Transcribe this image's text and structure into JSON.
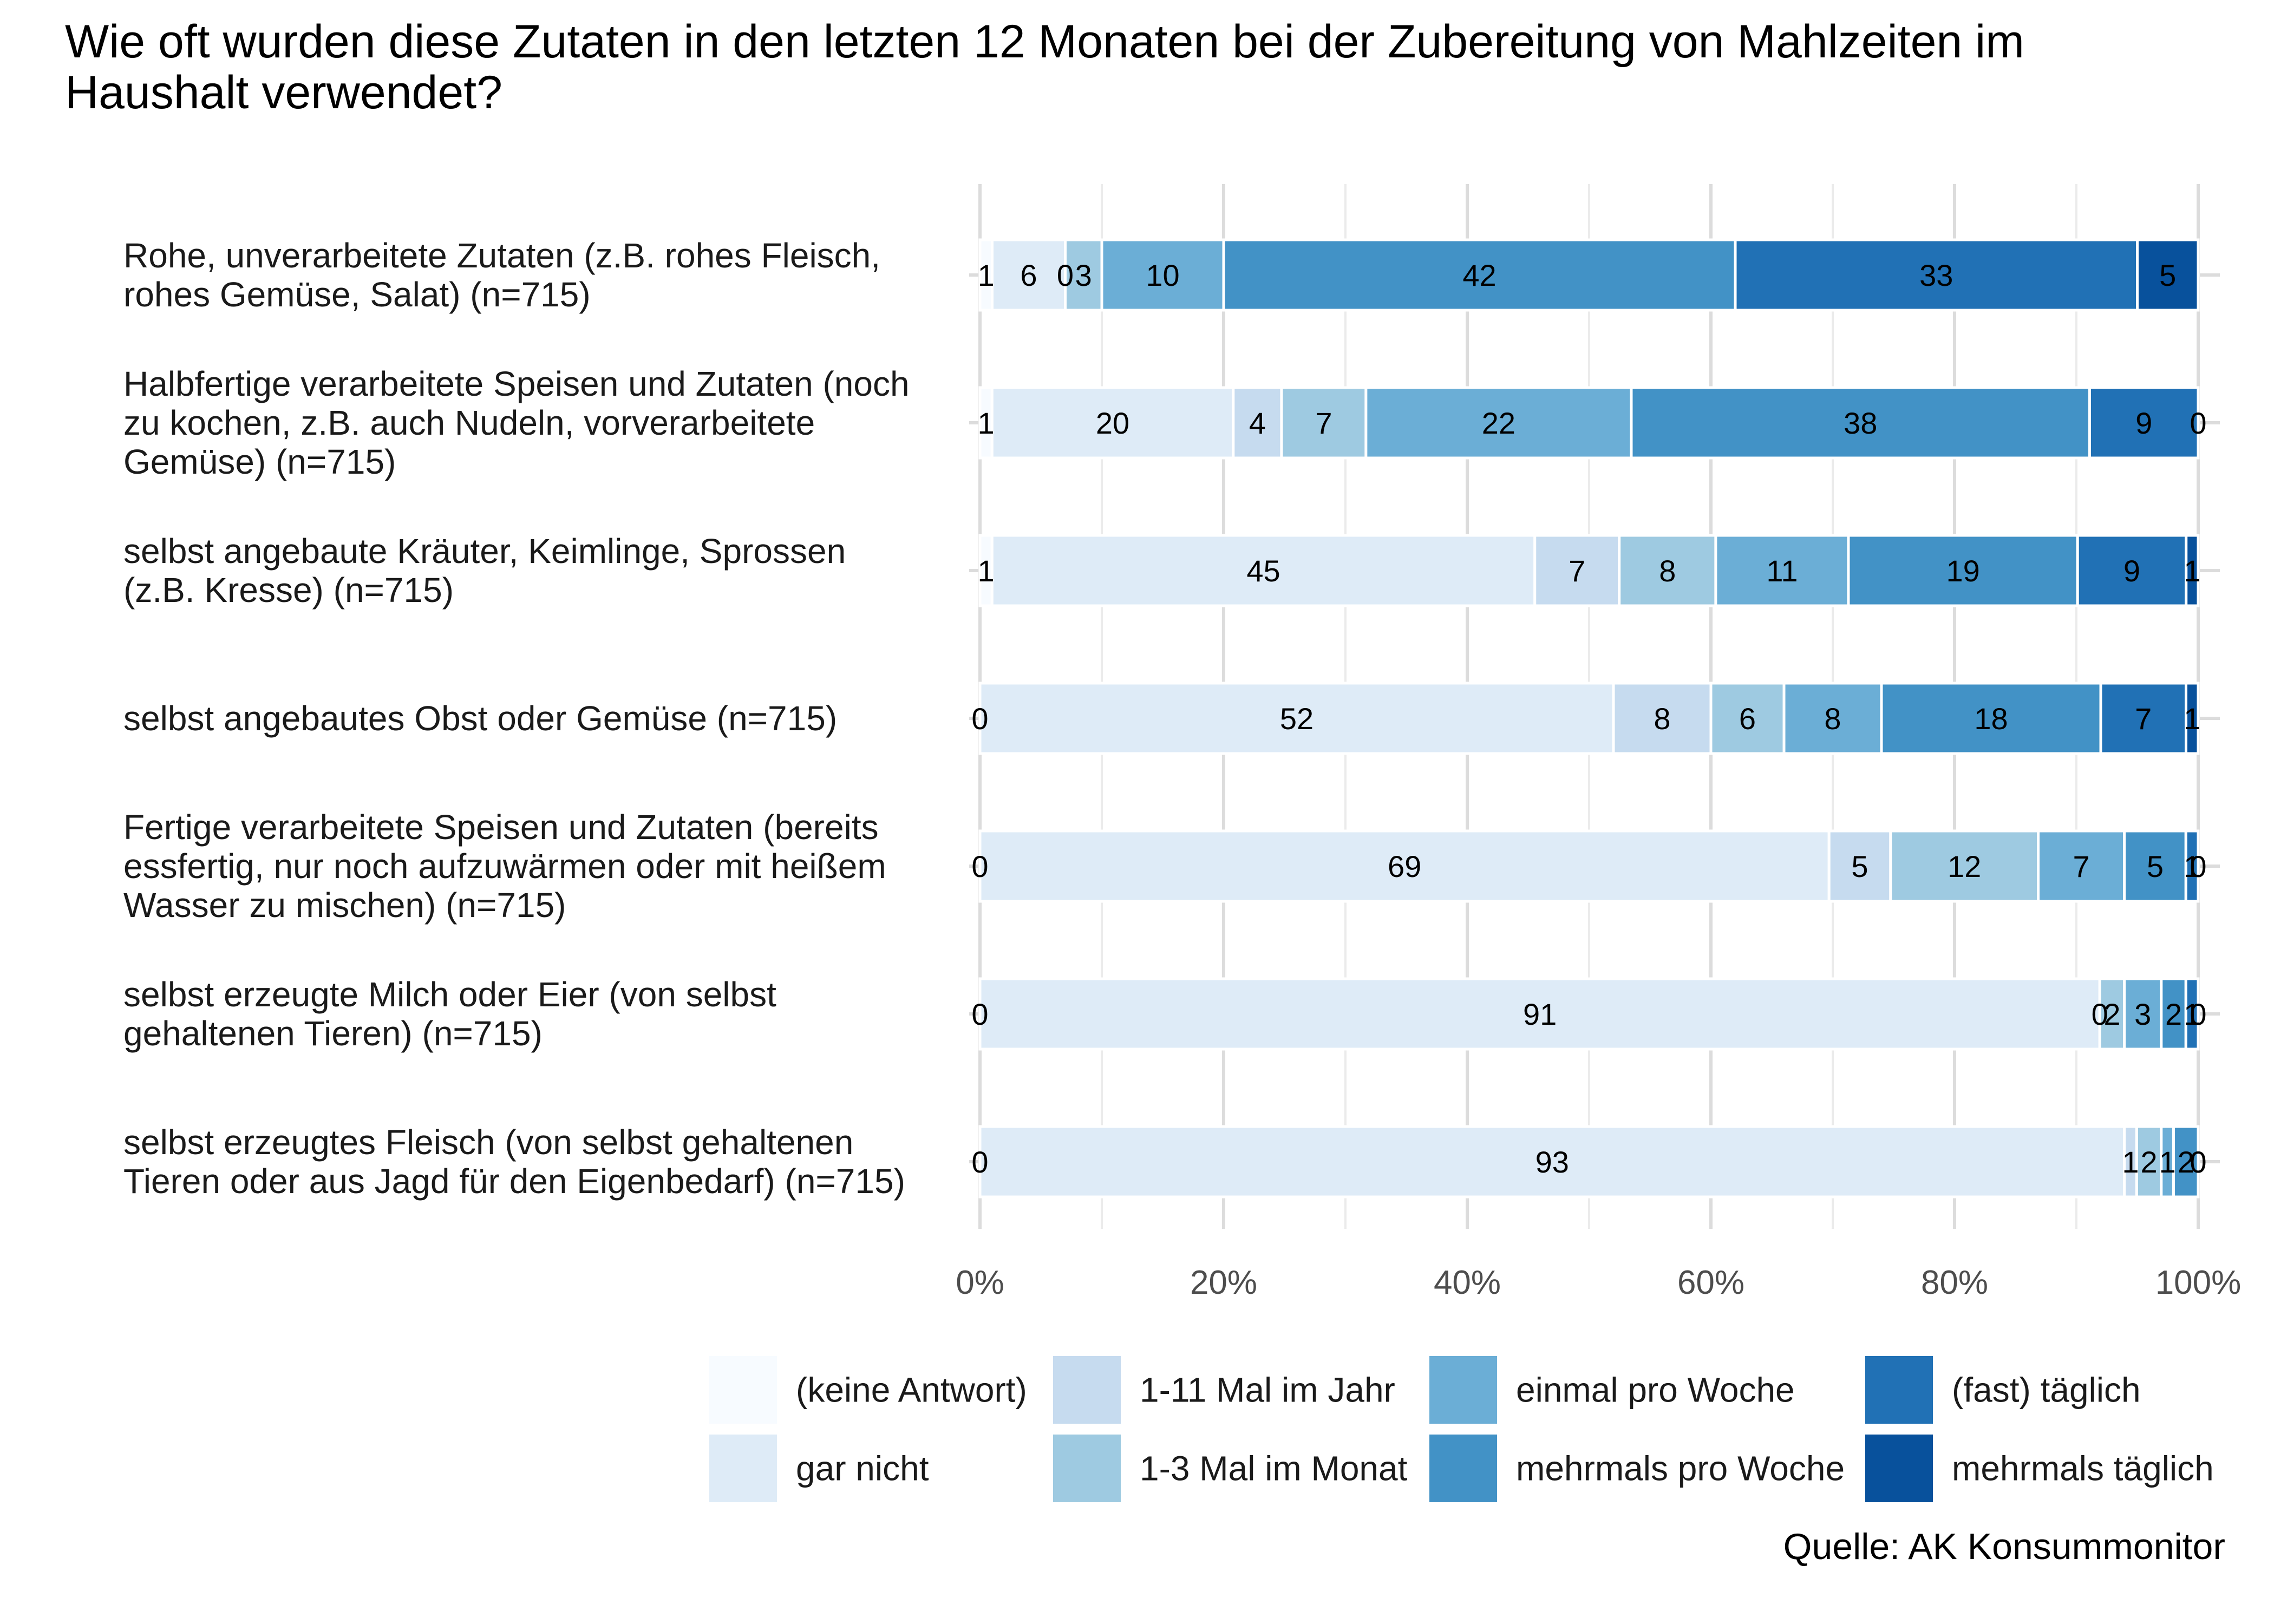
{
  "chart_data": {
    "type": "bar",
    "orientation": "horizontal",
    "stacked": "percent",
    "title_lines": [
      "Wie oft wurden diese Zutaten in den letzten 12 Monaten bei der Zubereitung von Mahlzeiten im",
      "Haushalt verwendet?"
    ],
    "categories": [
      [
        "Rohe, unverarbeitete Zutaten (z.B. rohes Fleisch,",
        "rohes Gemüse, Salat) (n=715)"
      ],
      [
        "Halbfertige verarbeitete Speisen und Zutaten (noch",
        "zu kochen, z.B. auch Nudeln, vorverarbeitete",
        "Gemüse) (n=715)"
      ],
      [
        "selbst angebaute Kräuter, Keimlinge, Sprossen",
        "(z.B. Kresse) (n=715)"
      ],
      [
        "selbst angebautes Obst oder Gemüse (n=715)"
      ],
      [
        "Fertige verarbeitete Speisen und Zutaten (bereits",
        "essfertig, nur noch aufzuwärmen oder mit heißem",
        "Wasser zu mischen) (n=715)"
      ],
      [
        "selbst erzeugte Milch oder Eier (von selbst",
        "gehaltenen Tieren) (n=715)"
      ],
      [
        "selbst erzeugtes Fleisch (von selbst gehaltenen",
        "Tieren oder aus Jagd für den Eigenbedarf) (n=715)"
      ]
    ],
    "series": [
      {
        "name": "(keine Antwort)",
        "color": "#f7fbff",
        "values": [
          1,
          1,
          1,
          0,
          0,
          0,
          0
        ]
      },
      {
        "name": "gar nicht",
        "color": "#deebf7",
        "values": [
          6,
          20,
          45,
          52,
          69,
          91,
          93
        ]
      },
      {
        "name": "1-11 Mal im Jahr",
        "color": "#c6dbef",
        "values": [
          0,
          4,
          7,
          8,
          5,
          0,
          1
        ]
      },
      {
        "name": "1-3 Mal im Monat",
        "color": "#9ecae1",
        "values": [
          3,
          7,
          8,
          6,
          12,
          2,
          2
        ]
      },
      {
        "name": "einmal pro Woche",
        "color": "#6baed6",
        "values": [
          10,
          22,
          11,
          8,
          7,
          3,
          1
        ]
      },
      {
        "name": "mehrmals pro Woche",
        "color": "#4292c6",
        "values": [
          42,
          38,
          19,
          18,
          5,
          2,
          2
        ]
      },
      {
        "name": "(fast) täglich",
        "color": "#2171b5",
        "values": [
          33,
          9,
          9,
          7,
          1,
          1,
          0
        ]
      },
      {
        "name": "mehrmals täglich",
        "color": "#08519c",
        "values": [
          5,
          0,
          1,
          1,
          0,
          0,
          0
        ]
      }
    ],
    "x_ticks": [
      "0%",
      "20%",
      "40%",
      "60%",
      "80%",
      "100%"
    ],
    "xlim": [
      0,
      100
    ],
    "grid": true,
    "legend_position": "bottom",
    "caption": "Quelle: AK Konsummonitor"
  }
}
